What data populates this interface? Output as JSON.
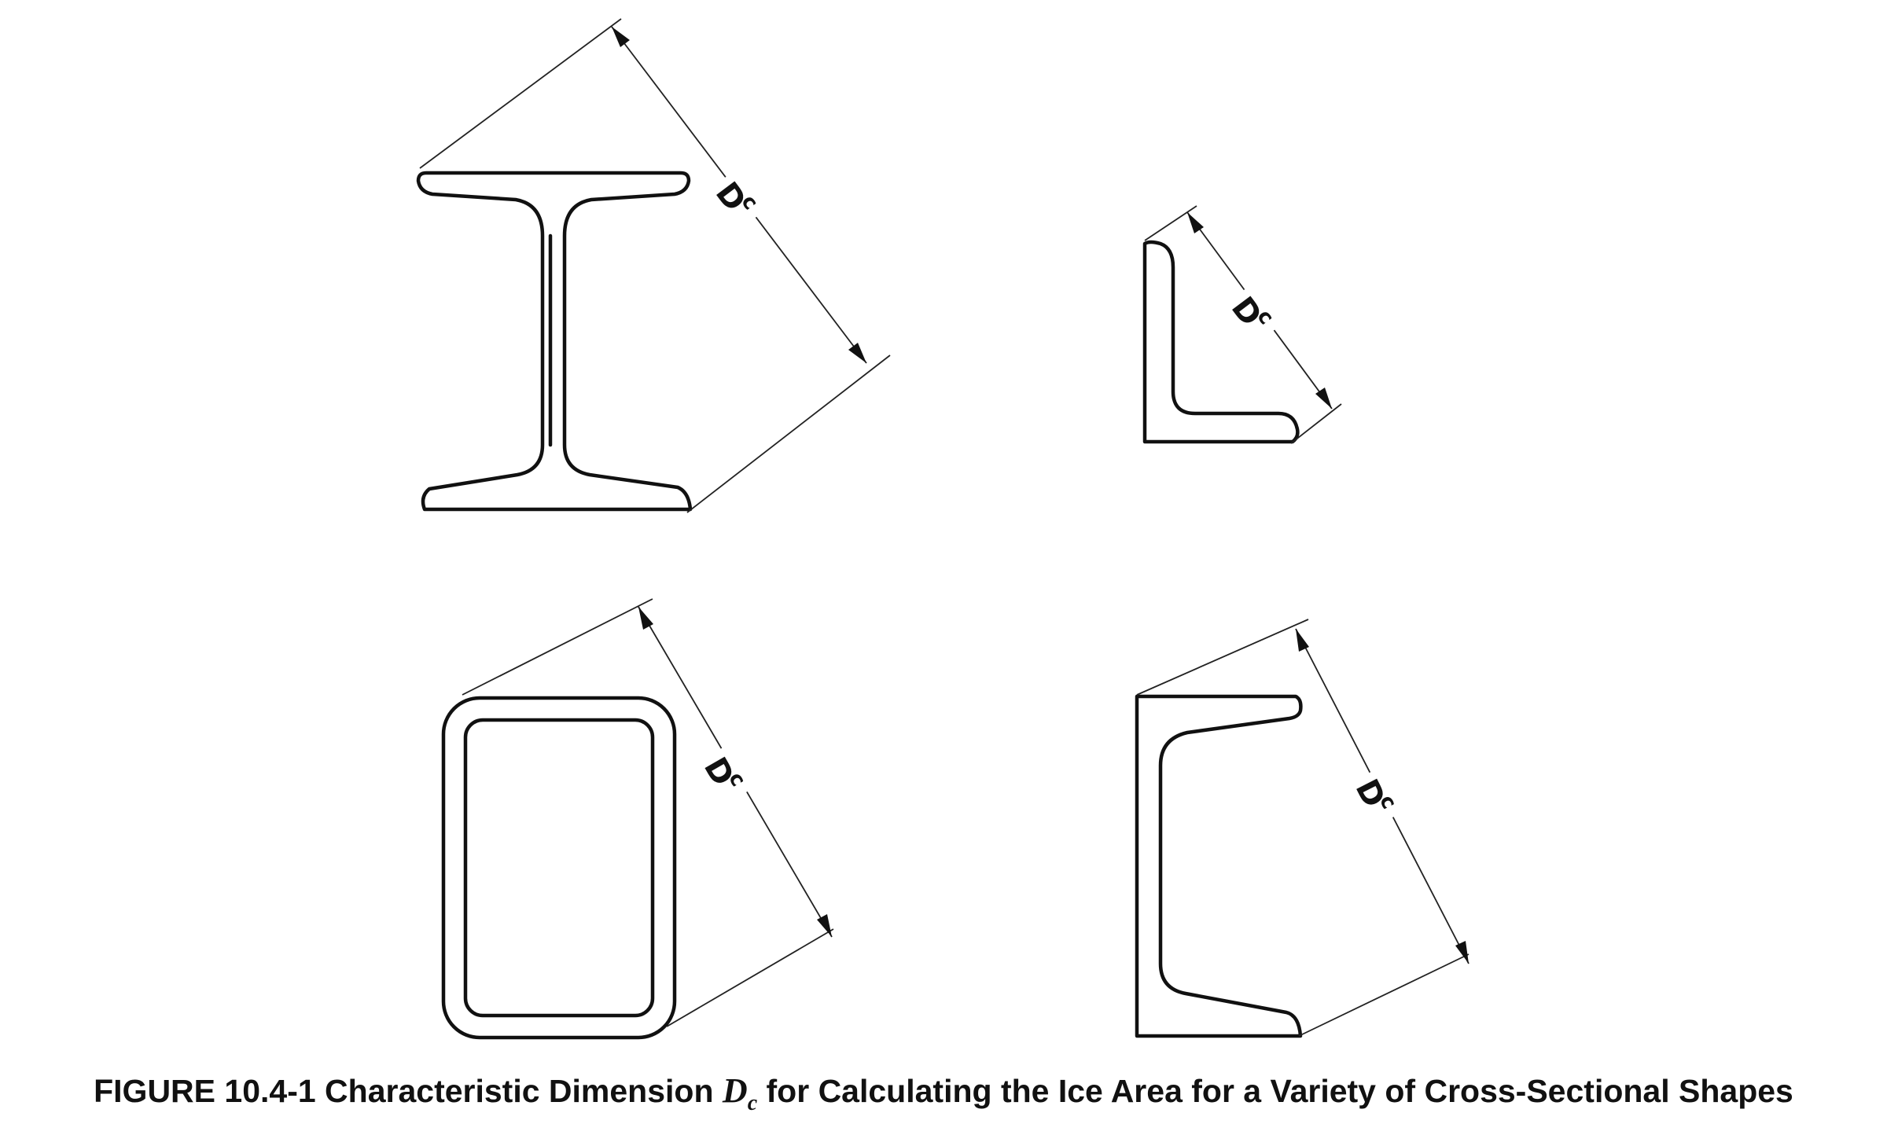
{
  "dimension_label": {
    "main": "D",
    "sub": "c"
  },
  "caption": {
    "prefix": "FIGURE 10.4-1 Characteristic Dimension",
    "symbol_main": "D",
    "symbol_sub": "c",
    "suffix": "for Calculating the Ice Area for a Variety of Cross-Sectional Shapes"
  }
}
